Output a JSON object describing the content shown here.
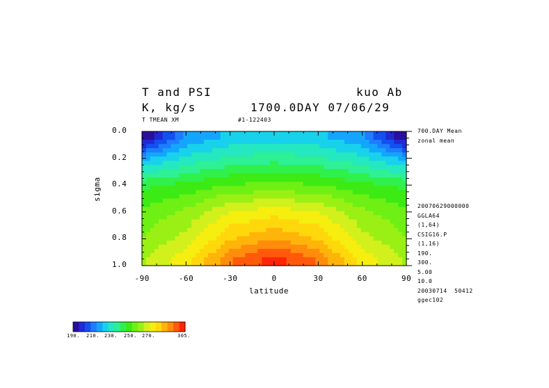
{
  "header": {
    "title_left": "T and PSI",
    "title_right": "kuo Ab",
    "units": "K, kg/s",
    "time": "1700.0DAY 07/06/29",
    "var_label": "T TMEAN XM",
    "run_id": "#1-122403"
  },
  "side_info": {
    "top": [
      "700.DAY Mean",
      "zonal mean"
    ],
    "bottom": [
      "20070629000000",
      "GGLA64",
      "(1,64)",
      "CSIG16.P",
      "(1,16)",
      "190.",
      "300.",
      "5.00",
      "10.0",
      "20030714  50412",
      "ggec102"
    ]
  },
  "colorbar": {
    "labels": [
      "190.",
      "210.",
      "230.",
      "250.",
      "270.",
      "305."
    ],
    "colors": [
      "#2a0e9e",
      "#1f2ad4",
      "#1250f0",
      "#1f7cff",
      "#14a6ff",
      "#18d2ec",
      "#24e8c0",
      "#2ef094",
      "#30f04c",
      "#3cea14",
      "#6ef014",
      "#9af014",
      "#d2f01c",
      "#f6ee0e",
      "#ffd80c",
      "#ffb40a",
      "#ff8c0c",
      "#ff5a0c",
      "#ff2608"
    ]
  },
  "chart_data": {
    "type": "heatmap",
    "xlabel": "latitude",
    "ylabel": "sigma",
    "xlim": [
      -90,
      90
    ],
    "ylim": [
      1.0,
      0.0
    ],
    "x_ticks": [
      "-90",
      "-60",
      "-30",
      "0",
      "30",
      "60",
      "90"
    ],
    "y_ticks": [
      "0.0",
      "0.2",
      "0.4",
      "0.6",
      "0.8",
      "1.0"
    ],
    "x": [
      -90,
      -60,
      -30,
      0,
      30,
      60,
      90
    ],
    "y": [
      0.05,
      0.2,
      0.4,
      0.6,
      0.8,
      0.95
    ],
    "z": [
      [
        190,
        215,
        222,
        224,
        222,
        215,
        190
      ],
      [
        218,
        228,
        233,
        236,
        233,
        228,
        218
      ],
      [
        243,
        246,
        251,
        252,
        251,
        246,
        243
      ],
      [
        252,
        258,
        269,
        272,
        269,
        258,
        252
      ],
      [
        257,
        265,
        280,
        287,
        280,
        265,
        257
      ],
      [
        262,
        272,
        292,
        302,
        292,
        272,
        262
      ]
    ],
    "zlim": [
      190,
      305
    ],
    "colormap": "rainbow blue-to-red"
  }
}
